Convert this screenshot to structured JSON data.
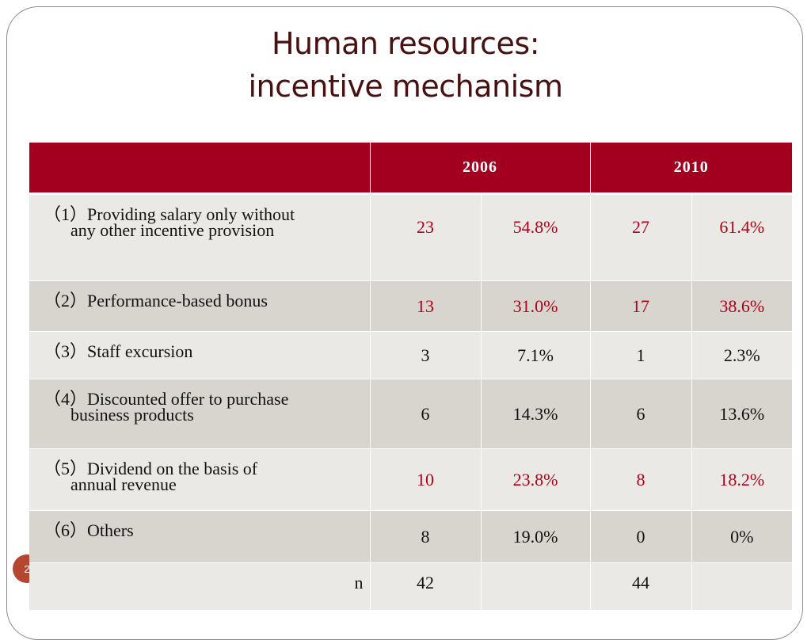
{
  "title": {
    "line1": "Human resources:",
    "line2": "incentive mechanism"
  },
  "page_number": "2",
  "table": {
    "headers": [
      "",
      "2006",
      "2010"
    ],
    "rows": [
      {
        "num": "（1）",
        "label_line1": "Providing salary only without",
        "label_line2": "any other incentive provision",
        "n2006": "23",
        "p2006": "54.8%",
        "n2010": "27",
        "p2010": "61.4%",
        "highlight": true
      },
      {
        "num": "（2）",
        "label_line1": "Performance-based  bonus",
        "label_line2": "",
        "n2006": "13",
        "p2006": "31.0%",
        "n2010": "17",
        "p2010": "38.6%",
        "highlight": true
      },
      {
        "num": "（3）",
        "label_line1": "Staff excursion",
        "label_line2": "",
        "n2006": "3",
        "p2006": "7.1%",
        "n2010": "1",
        "p2010": "2.3%",
        "highlight": false
      },
      {
        "num": "（4）",
        "label_line1": "Discounted offer to purchase",
        "label_line2": "business products",
        "n2006": "6",
        "p2006": "14.3%",
        "n2010": "6",
        "p2010": "13.6%",
        "highlight": false
      },
      {
        "num": "（5）",
        "label_line1": "Dividend on the basis of",
        "label_line2": "annual revenue",
        "n2006": "10",
        "p2006": "23.8%",
        "n2010": "8",
        "p2010": "18.2%",
        "highlight": true
      },
      {
        "num": "（6）",
        "label_line1": "Others",
        "label_line2": "",
        "n2006": "8",
        "p2006": "19.0%",
        "n2010": "0",
        "p2010": "0%",
        "highlight": false
      }
    ],
    "total": {
      "label": "n",
      "n2006": "42",
      "n2010": "44"
    }
  },
  "colors": {
    "header_bg": "#a30020",
    "highlight_text": "#b1001a",
    "title_text": "#4a0f0f",
    "row_light": "#ebe9e5",
    "row_dark": "#d8d5cf"
  }
}
